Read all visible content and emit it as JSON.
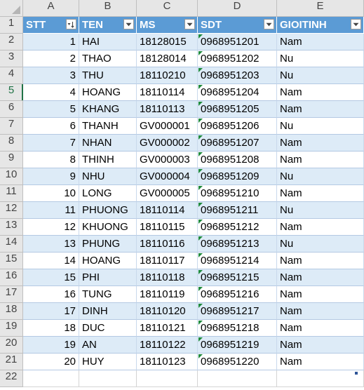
{
  "columns": [
    "A",
    "B",
    "C",
    "D",
    "E"
  ],
  "headers": [
    "STT",
    "TEN",
    "MS",
    "SDT",
    "GIOITINH"
  ],
  "rows": [
    {
      "stt": "1",
      "ten": "HAI",
      "ms": "18128015",
      "sdt": "0968951201",
      "gt": "Nam"
    },
    {
      "stt": "2",
      "ten": "THAO",
      "ms": "18128014",
      "sdt": "0968951202",
      "gt": "Nu"
    },
    {
      "stt": "3",
      "ten": "THU",
      "ms": "18110210",
      "sdt": "0968951203",
      "gt": "Nu"
    },
    {
      "stt": "4",
      "ten": "HOANG",
      "ms": "18110114",
      "sdt": "0968951204",
      "gt": "Nam"
    },
    {
      "stt": "5",
      "ten": "KHANG",
      "ms": "18110113",
      "sdt": "0968951205",
      "gt": "Nam"
    },
    {
      "stt": "6",
      "ten": "THANH",
      "ms": "GV000001",
      "sdt": "0968951206",
      "gt": "Nu"
    },
    {
      "stt": "7",
      "ten": "NHAN",
      "ms": "GV000002",
      "sdt": "0968951207",
      "gt": "Nam"
    },
    {
      "stt": "8",
      "ten": "THINH",
      "ms": "GV000003",
      "sdt": "0968951208",
      "gt": "Nam"
    },
    {
      "stt": "9",
      "ten": "NHU",
      "ms": "GV000004",
      "sdt": "0968951209",
      "gt": "Nu"
    },
    {
      "stt": "10",
      "ten": "LONG",
      "ms": "GV000005",
      "sdt": "0968951210",
      "gt": "Nam"
    },
    {
      "stt": "11",
      "ten": "PHUONG",
      "ms": "18110114",
      "sdt": "0968951211",
      "gt": "Nu"
    },
    {
      "stt": "12",
      "ten": "KHUONG",
      "ms": "18110115",
      "sdt": "0968951212",
      "gt": "Nam"
    },
    {
      "stt": "13",
      "ten": "PHUNG",
      "ms": "18110116",
      "sdt": "0968951213",
      "gt": "Nu"
    },
    {
      "stt": "14",
      "ten": "HOANG",
      "ms": "18110117",
      "sdt": "0968951214",
      "gt": "Nam"
    },
    {
      "stt": "15",
      "ten": "PHI",
      "ms": "18110118",
      "sdt": "0968951215",
      "gt": "Nam"
    },
    {
      "stt": "16",
      "ten": "TUNG",
      "ms": "18110119",
      "sdt": "0968951216",
      "gt": "Nam"
    },
    {
      "stt": "17",
      "ten": "DINH",
      "ms": "18110120",
      "sdt": "0968951217",
      "gt": "Nam"
    },
    {
      "stt": "18",
      "ten": "DUC",
      "ms": "18110121",
      "sdt": "0968951218",
      "gt": "Nam"
    },
    {
      "stt": "19",
      "ten": "AN",
      "ms": "18110122",
      "sdt": "0968951219",
      "gt": "Nam"
    },
    {
      "stt": "20",
      "ten": "HUY",
      "ms": "18110123",
      "sdt": "0968951220",
      "gt": "Nam"
    }
  ],
  "row_numbers": [
    "1",
    "2",
    "3",
    "4",
    "5",
    "6",
    "7",
    "8",
    "9",
    "10",
    "11",
    "12",
    "13",
    "14",
    "15",
    "16",
    "17",
    "18",
    "19",
    "20",
    "21",
    "22"
  ],
  "active_row": "5",
  "sorted_column": "STT",
  "colors": {
    "header_fill": "#5b9bd5",
    "band_fill": "#ddebf7",
    "text_number_indicator": "#1e8a3c",
    "active_header": "#217346"
  },
  "icons": {
    "filter": "filter-dropdown-icon",
    "sorted_filter": "sort-ascending-filter-icon"
  }
}
